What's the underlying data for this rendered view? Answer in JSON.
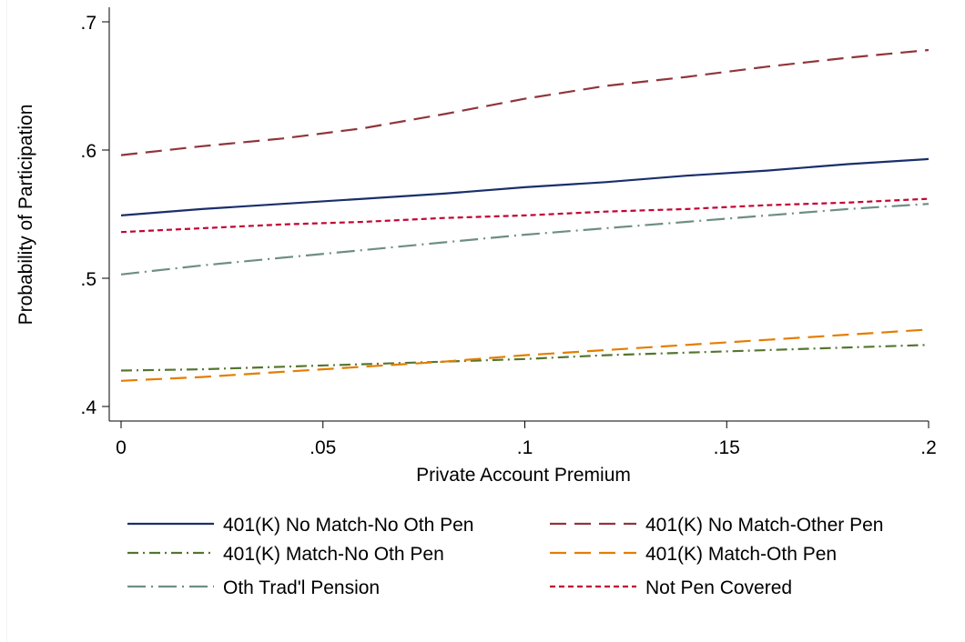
{
  "chart_data": {
    "type": "line",
    "title": "",
    "xlabel": "Private Account Premium",
    "ylabel": "Probability of Participation",
    "xlim": [
      0,
      0.2
    ],
    "ylim": [
      0.4,
      0.7
    ],
    "x_ticks": [
      0,
      0.05,
      0.1,
      0.15,
      0.2
    ],
    "x_tick_labels": [
      "0",
      ".05",
      ".1",
      ".15",
      ".2"
    ],
    "y_ticks": [
      0.4,
      0.5,
      0.6,
      0.7
    ],
    "y_tick_labels": [
      ".4",
      ".5",
      ".6",
      ".7"
    ],
    "grid": false,
    "legend_position": "bottom",
    "x": [
      0,
      0.02,
      0.04,
      0.06,
      0.08,
      0.1,
      0.12,
      0.14,
      0.16,
      0.18,
      0.2
    ],
    "series": [
      {
        "name": "401(K) No Match-No Oth Pen",
        "color": "#1a2f6b",
        "dash": "solid",
        "values": [
          0.549,
          0.554,
          0.558,
          0.562,
          0.566,
          0.571,
          0.575,
          0.58,
          0.584,
          0.589,
          0.593
        ]
      },
      {
        "name": "401(K) No Match-Other Pen",
        "color": "#90353b",
        "dash": "longdash",
        "values": [
          0.596,
          0.603,
          0.609,
          0.617,
          0.628,
          0.64,
          0.65,
          0.657,
          0.665,
          0.672,
          0.678
        ]
      },
      {
        "name": "401(K) Match-No Oth Pen",
        "color": "#55752f",
        "dash": "dashdot",
        "values": [
          0.428,
          0.429,
          0.431,
          0.433,
          0.435,
          0.437,
          0.44,
          0.442,
          0.444,
          0.446,
          0.448
        ]
      },
      {
        "name": "401(K) Match-Oth Pen",
        "color": "#e37e00",
        "dash": "longdash",
        "values": [
          0.42,
          0.423,
          0.427,
          0.431,
          0.435,
          0.44,
          0.444,
          0.448,
          0.452,
          0.456,
          0.46
        ]
      },
      {
        "name": "Oth Trad'l Pension",
        "color": "#6e8e84",
        "dash": "longdashdot",
        "values": [
          0.503,
          0.51,
          0.516,
          0.522,
          0.528,
          0.534,
          0.539,
          0.544,
          0.549,
          0.554,
          0.558
        ]
      },
      {
        "name": "Not Pen Covered",
        "color": "#c10534",
        "dash": "shortdash",
        "values": [
          0.536,
          0.539,
          0.542,
          0.544,
          0.547,
          0.549,
          0.552,
          0.554,
          0.557,
          0.559,
          0.562
        ]
      }
    ]
  }
}
